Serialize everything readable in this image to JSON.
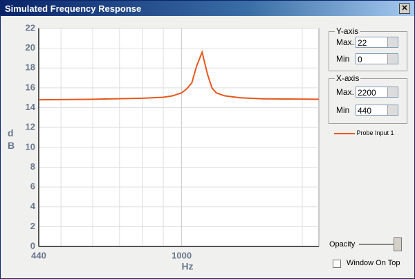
{
  "window": {
    "title": "Simulated Frequency Response"
  },
  "chart_data": {
    "type": "line",
    "x": [
      440,
      600,
      800,
      900,
      950,
      1000,
      1030,
      1060,
      1090,
      1125,
      1160,
      1190,
      1220,
      1280,
      1400,
      1600,
      2200
    ],
    "series": [
      {
        "name": "Probe Input 1",
        "color": "#e8561c",
        "values": [
          14.8,
          14.85,
          14.95,
          15.05,
          15.2,
          15.5,
          15.9,
          16.5,
          18.2,
          19.6,
          17.4,
          16.0,
          15.5,
          15.2,
          15.0,
          14.9,
          14.85
        ]
      }
    ],
    "xlim": [
      440,
      2200
    ],
    "ylim": [
      0,
      22
    ],
    "xscale": "log",
    "xticks": [
      440,
      1000
    ],
    "xminor": [
      500,
      600,
      700,
      800,
      900,
      2000
    ],
    "yticks": [
      0,
      2,
      4,
      6,
      8,
      10,
      12,
      14,
      16,
      18,
      20,
      22
    ],
    "grid": true,
    "xlabel": "Hz",
    "ylabel": "dB"
  },
  "controls": {
    "y_axis": {
      "title": "Y-axis",
      "max_label": "Max.",
      "min_label": "Min"
    },
    "x_axis": {
      "title": "X-axis",
      "max_label": "Max.",
      "min_label": "Min"
    },
    "opacity_label": "Opacity",
    "window_on_top": {
      "label": "Window On Top",
      "checked": false
    }
  }
}
